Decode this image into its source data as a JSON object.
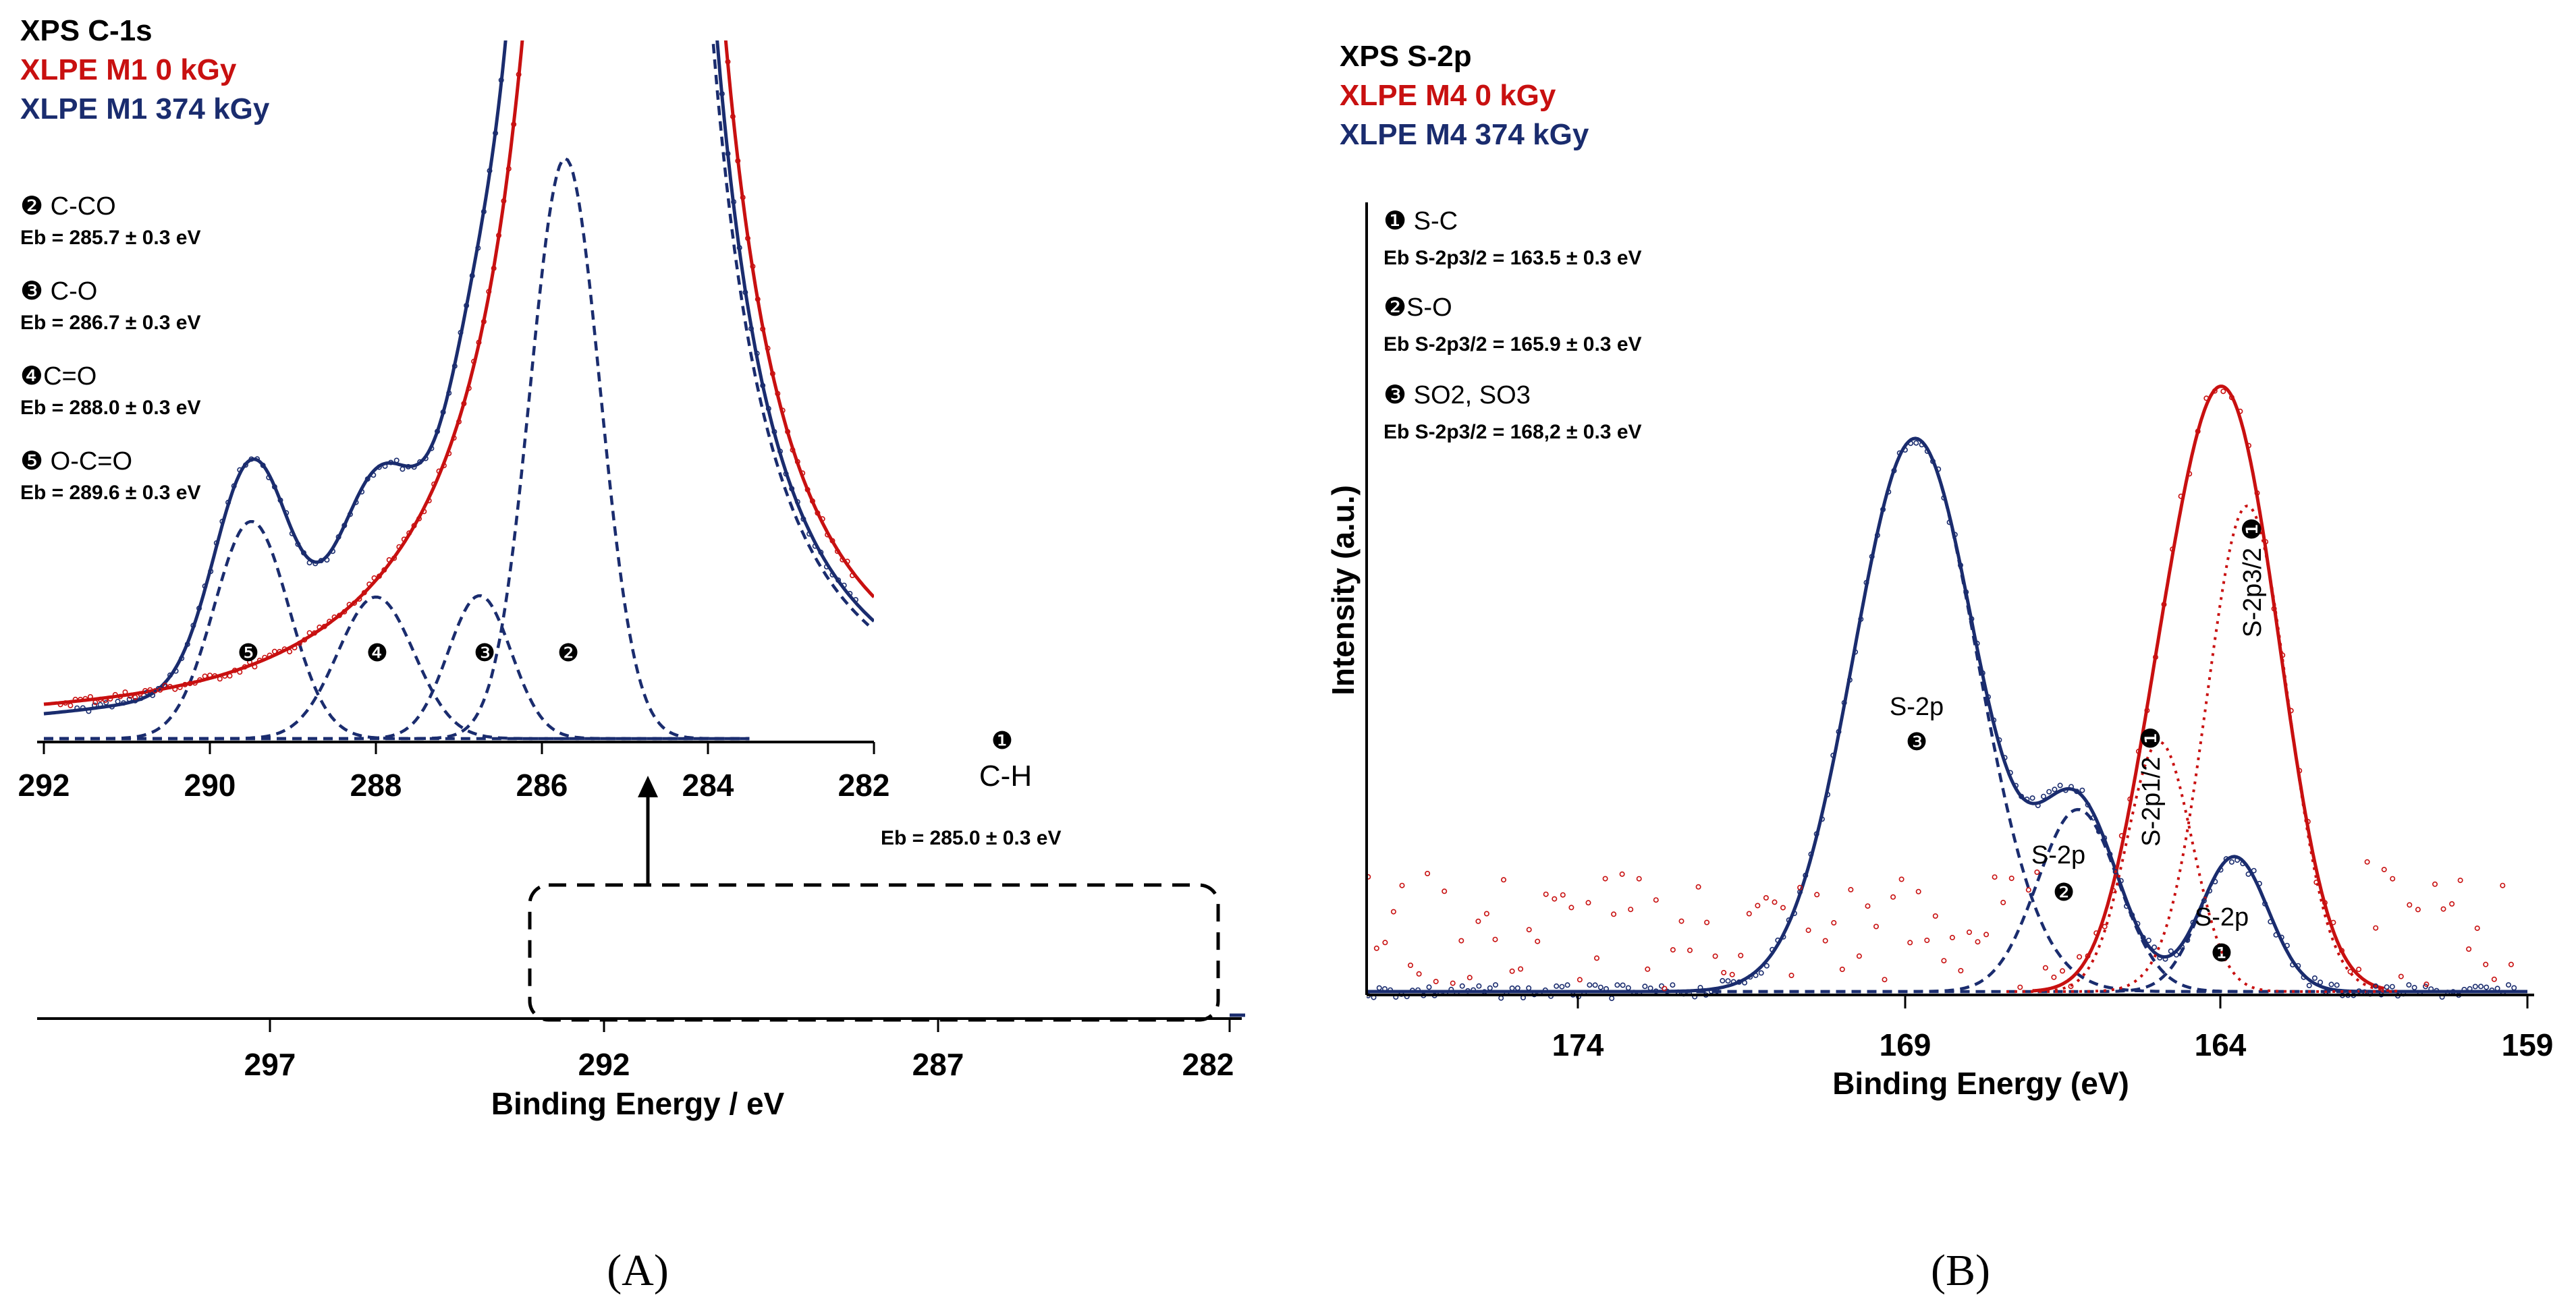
{
  "colors": {
    "red": "#c81010",
    "blue": "#1a2c6e",
    "black": "#000000"
  },
  "panel_labels": [
    "(A)",
    "(B)"
  ],
  "chart_data": [
    {
      "id": "A-main",
      "type": "line",
      "title": "XPS C-1s",
      "legend": [
        {
          "label": "XLPE M1 0 kGy",
          "color": "#c81010"
        },
        {
          "label": "XLPE M1 374 kGy",
          "color": "#1a2c6e"
        }
      ],
      "xlabel": "Binding Energy / eV",
      "xlim": [
        300,
        282
      ],
      "xticks": [
        "297",
        "292",
        "287",
        "282"
      ],
      "peak_label": {
        "number": "❶",
        "name": "C-H",
        "eb": "Eb = 285.0 ± 0.3 eV"
      },
      "series": [
        {
          "name": "XLPE M1 0 kGy",
          "peak_center": 285.0,
          "relative_height": 0.985
        },
        {
          "name": "XLPE M1 374 kGy",
          "peak_center": 285.0,
          "relative_height": 0.965
        }
      ]
    },
    {
      "id": "A-inset",
      "type": "line",
      "xlim": [
        292,
        282
      ],
      "xticks": [
        "292",
        "290",
        "288",
        "286",
        "284",
        "282"
      ],
      "components": [
        {
          "number": "❷",
          "name": "C-CO",
          "center": 285.7,
          "eb": "Eb = 285.7 ± 0.3 eV"
        },
        {
          "number": "❸",
          "name": "C-O",
          "center": 286.7,
          "eb": "Eb = 286.7 ± 0.3 eV"
        },
        {
          "number": "❹",
          "name": "C=O",
          "center": 288.0,
          "eb": "Eb = 288.0 ± 0.3 eV"
        },
        {
          "number": "❺",
          "name": "O-C=O",
          "center": 289.6,
          "eb": "Eb = 289.6 ± 0.3 eV"
        }
      ]
    },
    {
      "id": "B",
      "type": "line",
      "title": "XPS S-2p",
      "legend": [
        {
          "label": "XLPE M4 0 kGy",
          "color": "#c81010"
        },
        {
          "label": "XLPE M4 374 kGy",
          "color": "#1a2c6e"
        }
      ],
      "xlabel": "Binding Energy (eV)",
      "ylabel": "Intensity (a.u.)",
      "xlim": [
        177,
        159
      ],
      "xticks": [
        "174",
        "169",
        "164",
        "159"
      ],
      "components": [
        {
          "number": "❶",
          "name": "S-C",
          "eb": "Eb  S-2p3/2 = 163.5 ± 0.3 eV",
          "center": 163.5
        },
        {
          "number": "❷",
          "name": "S-O",
          "eb": "Eb  S-2p3/2 = 165.9 ± 0.3 eV",
          "center": 165.9
        },
        {
          "number": "❸",
          "name": "SO2, SO3",
          "eb": "Eb  S-2p3/2 = 168,2 ± 0.3 eV",
          "center": 168.2
        }
      ],
      "peak_labels": [
        "S-2p",
        "S-2p",
        "S-2p",
        "S-2p1/2",
        "S-2p3/2"
      ],
      "series": [
        {
          "name": "XLPE M4 374 kGy",
          "peaks": [
            {
              "center": 168.2,
              "height": 0.82
            },
            {
              "center": 165.9,
              "height": 0.27
            },
            {
              "center": 163.5,
              "height": 0.2
            }
          ]
        },
        {
          "name": "XLPE M4 0 kGy",
          "peaks": [
            {
              "center": 164.7,
              "height": 0.37
            },
            {
              "center": 163.5,
              "height": 0.72
            }
          ]
        }
      ]
    }
  ]
}
